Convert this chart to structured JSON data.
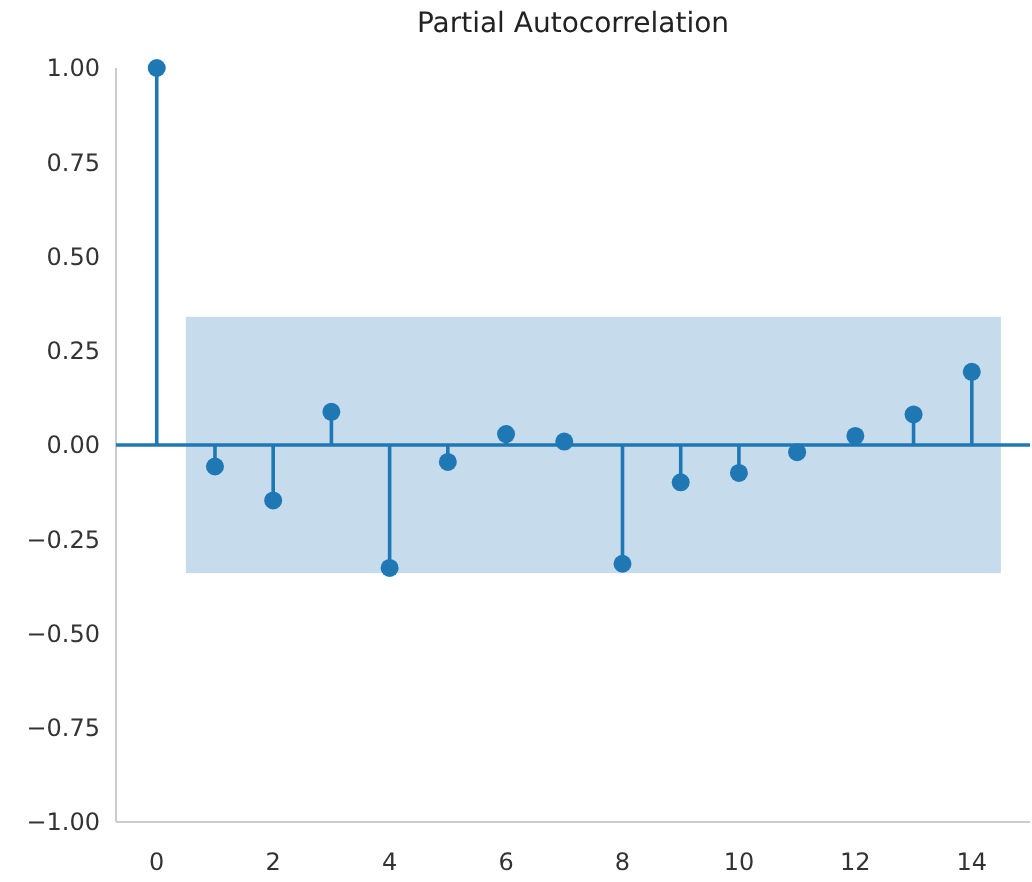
{
  "chart_data": {
    "type": "lollipop",
    "title": "Partial Autocorrelation",
    "x": [
      0,
      1,
      2,
      3,
      4,
      5,
      6,
      7,
      8,
      9,
      10,
      11,
      12,
      13,
      14
    ],
    "values": [
      1.0,
      -0.057,
      -0.147,
      0.088,
      -0.326,
      -0.045,
      0.029,
      0.009,
      -0.315,
      -0.099,
      -0.074,
      -0.019,
      0.024,
      0.081,
      0.194
    ],
    "color": "#1f77b4",
    "marker": "circle",
    "xlim": [
      -0.7,
      15
    ],
    "xticks": [
      0,
      2,
      4,
      6,
      8,
      10,
      12,
      14
    ],
    "ylim": [
      -1,
      1
    ],
    "yticks": [
      {
        "value": -1,
        "label": "−1.00"
      },
      {
        "value": -0.75,
        "label": "−0.75"
      },
      {
        "value": -0.5,
        "label": "−0.50"
      },
      {
        "value": -0.25,
        "label": "−0.25"
      },
      {
        "value": 0,
        "label": "0.00"
      },
      {
        "value": 0.25,
        "label": "0.25"
      },
      {
        "value": 0.5,
        "label": "0.50"
      },
      {
        "value": 0.75,
        "label": "0.75"
      },
      {
        "value": 1,
        "label": "1.00"
      }
    ],
    "bands": [
      {
        "axis": "y",
        "from": -0.34,
        "to": 0.34,
        "color": "#c6dcec"
      }
    ],
    "ref_lines": [
      {
        "axis": "y",
        "value": 0,
        "color": "#1f77b4"
      }
    ],
    "grid": false
  }
}
